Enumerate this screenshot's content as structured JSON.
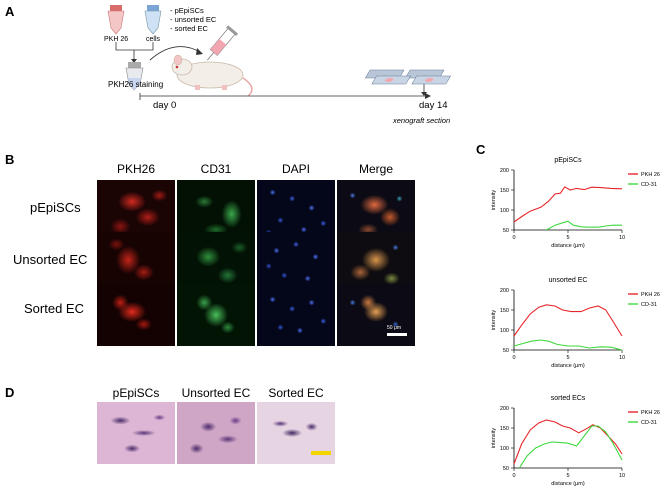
{
  "panels": {
    "a": "A",
    "b": "B",
    "c": "C",
    "d": "D"
  },
  "panel_a": {
    "tube1_label": "PKH 26",
    "tube2_label": "cells",
    "cell_list": [
      "- pEpiSCs",
      "- unsorted EC",
      "- sorted EC"
    ],
    "staining_label": "PKH26 staining",
    "day0": "day 0",
    "day14": "day 14",
    "section_label": "xenograft section"
  },
  "panel_b": {
    "columns": [
      "PKH26",
      "CD31",
      "DAPI",
      "Merge"
    ],
    "rows": [
      "pEpiSCs",
      "Unsorted EC",
      "Sorted EC"
    ],
    "scale_bar": "50 μm"
  },
  "panel_d": {
    "columns": [
      "pEpiSCs",
      "Unsorted EC",
      "Sorted EC"
    ]
  },
  "colors": {
    "pkh26": "#e8262a",
    "cd31": "#3fd83f"
  },
  "chart_data": [
    {
      "type": "line",
      "title": "pEpiSCs",
      "xlabel": "distance (μm)",
      "ylabel": "intensity",
      "xlim": [
        0,
        10
      ],
      "ylim": [
        50,
        200
      ],
      "xticks": [
        "0",
        "5",
        "10"
      ],
      "yticks": [
        "50",
        "100",
        "150",
        "200"
      ],
      "legend_position": "right",
      "series": [
        {
          "name": "PKH 26",
          "color": "#e8262a",
          "x": [
            0,
            0.8,
            1.5,
            2.5,
            3.2,
            3.8,
            4.3,
            4.7,
            5.2,
            5.8,
            6.5,
            7.2,
            8,
            9,
            10
          ],
          "y": [
            70,
            85,
            97,
            107,
            122,
            140,
            142,
            158,
            150,
            154,
            151,
            157,
            156,
            154,
            153
          ]
        },
        {
          "name": "CD-31",
          "color": "#3fd83f",
          "x": [
            3,
            3.8,
            4.5,
            5,
            5.5,
            6.2,
            7,
            7.8,
            8.5,
            9.2,
            10
          ],
          "y": [
            50,
            62,
            68,
            72,
            62,
            58,
            57,
            57,
            60,
            62,
            62
          ]
        }
      ]
    },
    {
      "type": "line",
      "title": "unsorted EC",
      "xlabel": "distance (μm)",
      "ylabel": "intensity",
      "xlim": [
        0,
        10
      ],
      "ylim": [
        50,
        200
      ],
      "xticks": [
        "0",
        "5",
        "10"
      ],
      "yticks": [
        "50",
        "100",
        "150",
        "200"
      ],
      "legend_position": "right",
      "series": [
        {
          "name": "PKH 26",
          "color": "#e8262a",
          "x": [
            0,
            0.7,
            1.5,
            2.3,
            3,
            3.8,
            4.5,
            5.3,
            6.2,
            7,
            7.8,
            8.5,
            9.2,
            10
          ],
          "y": [
            85,
            112,
            140,
            157,
            163,
            160,
            150,
            146,
            146,
            155,
            160,
            150,
            120,
            85
          ]
        },
        {
          "name": "CD-31",
          "color": "#3fd83f",
          "x": [
            0,
            0.8,
            1.6,
            2.5,
            3.2,
            4,
            5,
            6,
            7,
            8,
            9,
            10
          ],
          "y": [
            60,
            66,
            72,
            75,
            72,
            64,
            60,
            60,
            55,
            58,
            57,
            50
          ]
        }
      ]
    },
    {
      "type": "line",
      "title": "sorted ECs",
      "xlabel": "distance (μm)",
      "ylabel": "intensity",
      "xlim": [
        0,
        10
      ],
      "ylim": [
        50,
        200
      ],
      "xticks": [
        "0",
        "5",
        "10"
      ],
      "yticks": [
        "50",
        "100",
        "150",
        "200"
      ],
      "legend_position": "right",
      "series": [
        {
          "name": "PKH 26",
          "color": "#e8262a",
          "x": [
            0,
            0.7,
            1.5,
            2.3,
            3,
            3.8,
            4.5,
            5.2,
            6,
            6.7,
            7.3,
            8,
            8.7,
            9.4,
            10
          ],
          "y": [
            60,
            110,
            145,
            163,
            170,
            165,
            155,
            150,
            138,
            148,
            158,
            150,
            130,
            110,
            85
          ]
        },
        {
          "name": "CD-31",
          "color": "#3fd83f",
          "x": [
            0.5,
            1.2,
            2,
            2.8,
            3.5,
            4.2,
            5,
            5.8,
            6.5,
            7.2,
            7.8,
            8.5,
            9.2,
            10
          ],
          "y": [
            50,
            80,
            100,
            110,
            115,
            114,
            112,
            105,
            130,
            155,
            155,
            140,
            110,
            70
          ]
        }
      ]
    }
  ]
}
